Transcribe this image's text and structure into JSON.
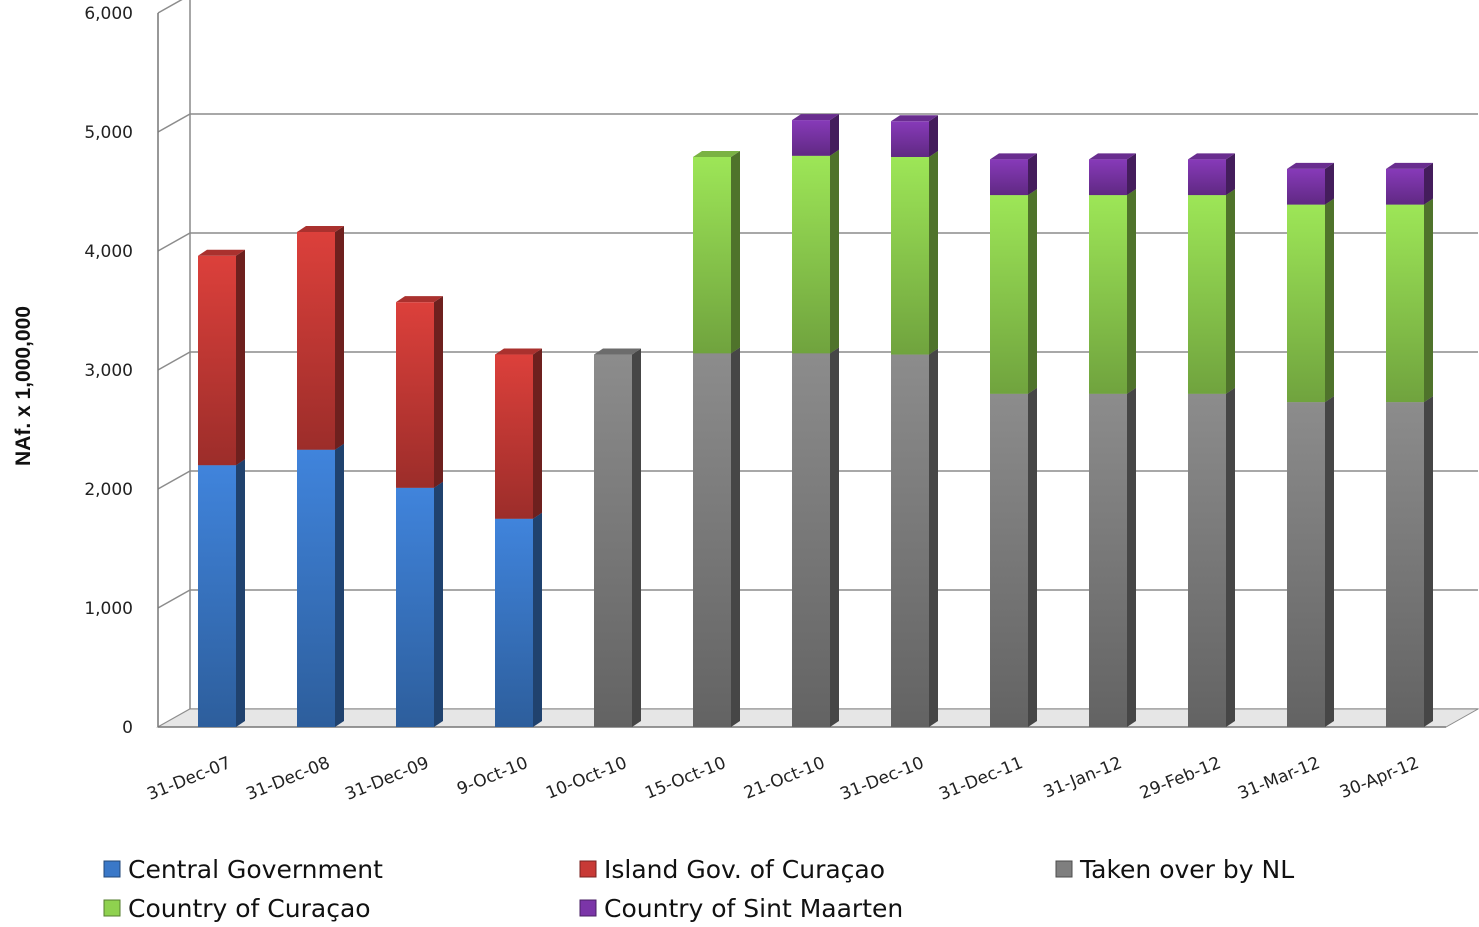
{
  "chart_data": {
    "type": "bar",
    "stacked": true,
    "three_d": true,
    "title": "",
    "xlabel": "",
    "ylabel": "NAf. x 1,000,000",
    "ylim": [
      0,
      6000
    ],
    "yticks": [
      "0",
      "1,000",
      "2,000",
      "3,000",
      "4,000",
      "5,000",
      "6,000"
    ],
    "grid": true,
    "legend_position": "bottom",
    "categories": [
      "31-Dec-07",
      "31-Dec-08",
      "31-Dec-09",
      "9-Oct-10",
      "10-Oct-10",
      "15-Oct-10",
      "21-Oct-10",
      "31-Dec-10",
      "31-Dec-11",
      "31-Jan-12",
      "29-Feb-12",
      "31-Mar-12",
      "30-Apr-12"
    ],
    "series": [
      {
        "name": "Central Government",
        "color": "#3a78c8",
        "values": [
          2200,
          2330,
          2010,
          1750,
          0,
          0,
          0,
          0,
          0,
          0,
          0,
          0,
          0
        ]
      },
      {
        "name": "Island Gov. of Curaçao",
        "color": "#c83a36",
        "values": [
          1760,
          1830,
          1560,
          1380,
          0,
          0,
          0,
          0,
          0,
          0,
          0,
          0,
          0
        ]
      },
      {
        "name": "Taken over by NL",
        "color": "#7f7f7f",
        "values": [
          0,
          0,
          0,
          0,
          3130,
          3140,
          3140,
          3130,
          2800,
          2800,
          2800,
          2730,
          2730
        ]
      },
      {
        "name": "Country of Curaçao",
        "color": "#8fd14f",
        "values": [
          0,
          0,
          0,
          0,
          0,
          1650,
          1660,
          1660,
          1670,
          1670,
          1670,
          1660,
          1660
        ]
      },
      {
        "name": "Country of Sint Maarten",
        "color": "#7b35a8",
        "values": [
          0,
          0,
          0,
          0,
          0,
          0,
          300,
          300,
          300,
          300,
          300,
          300,
          300
        ]
      }
    ]
  }
}
